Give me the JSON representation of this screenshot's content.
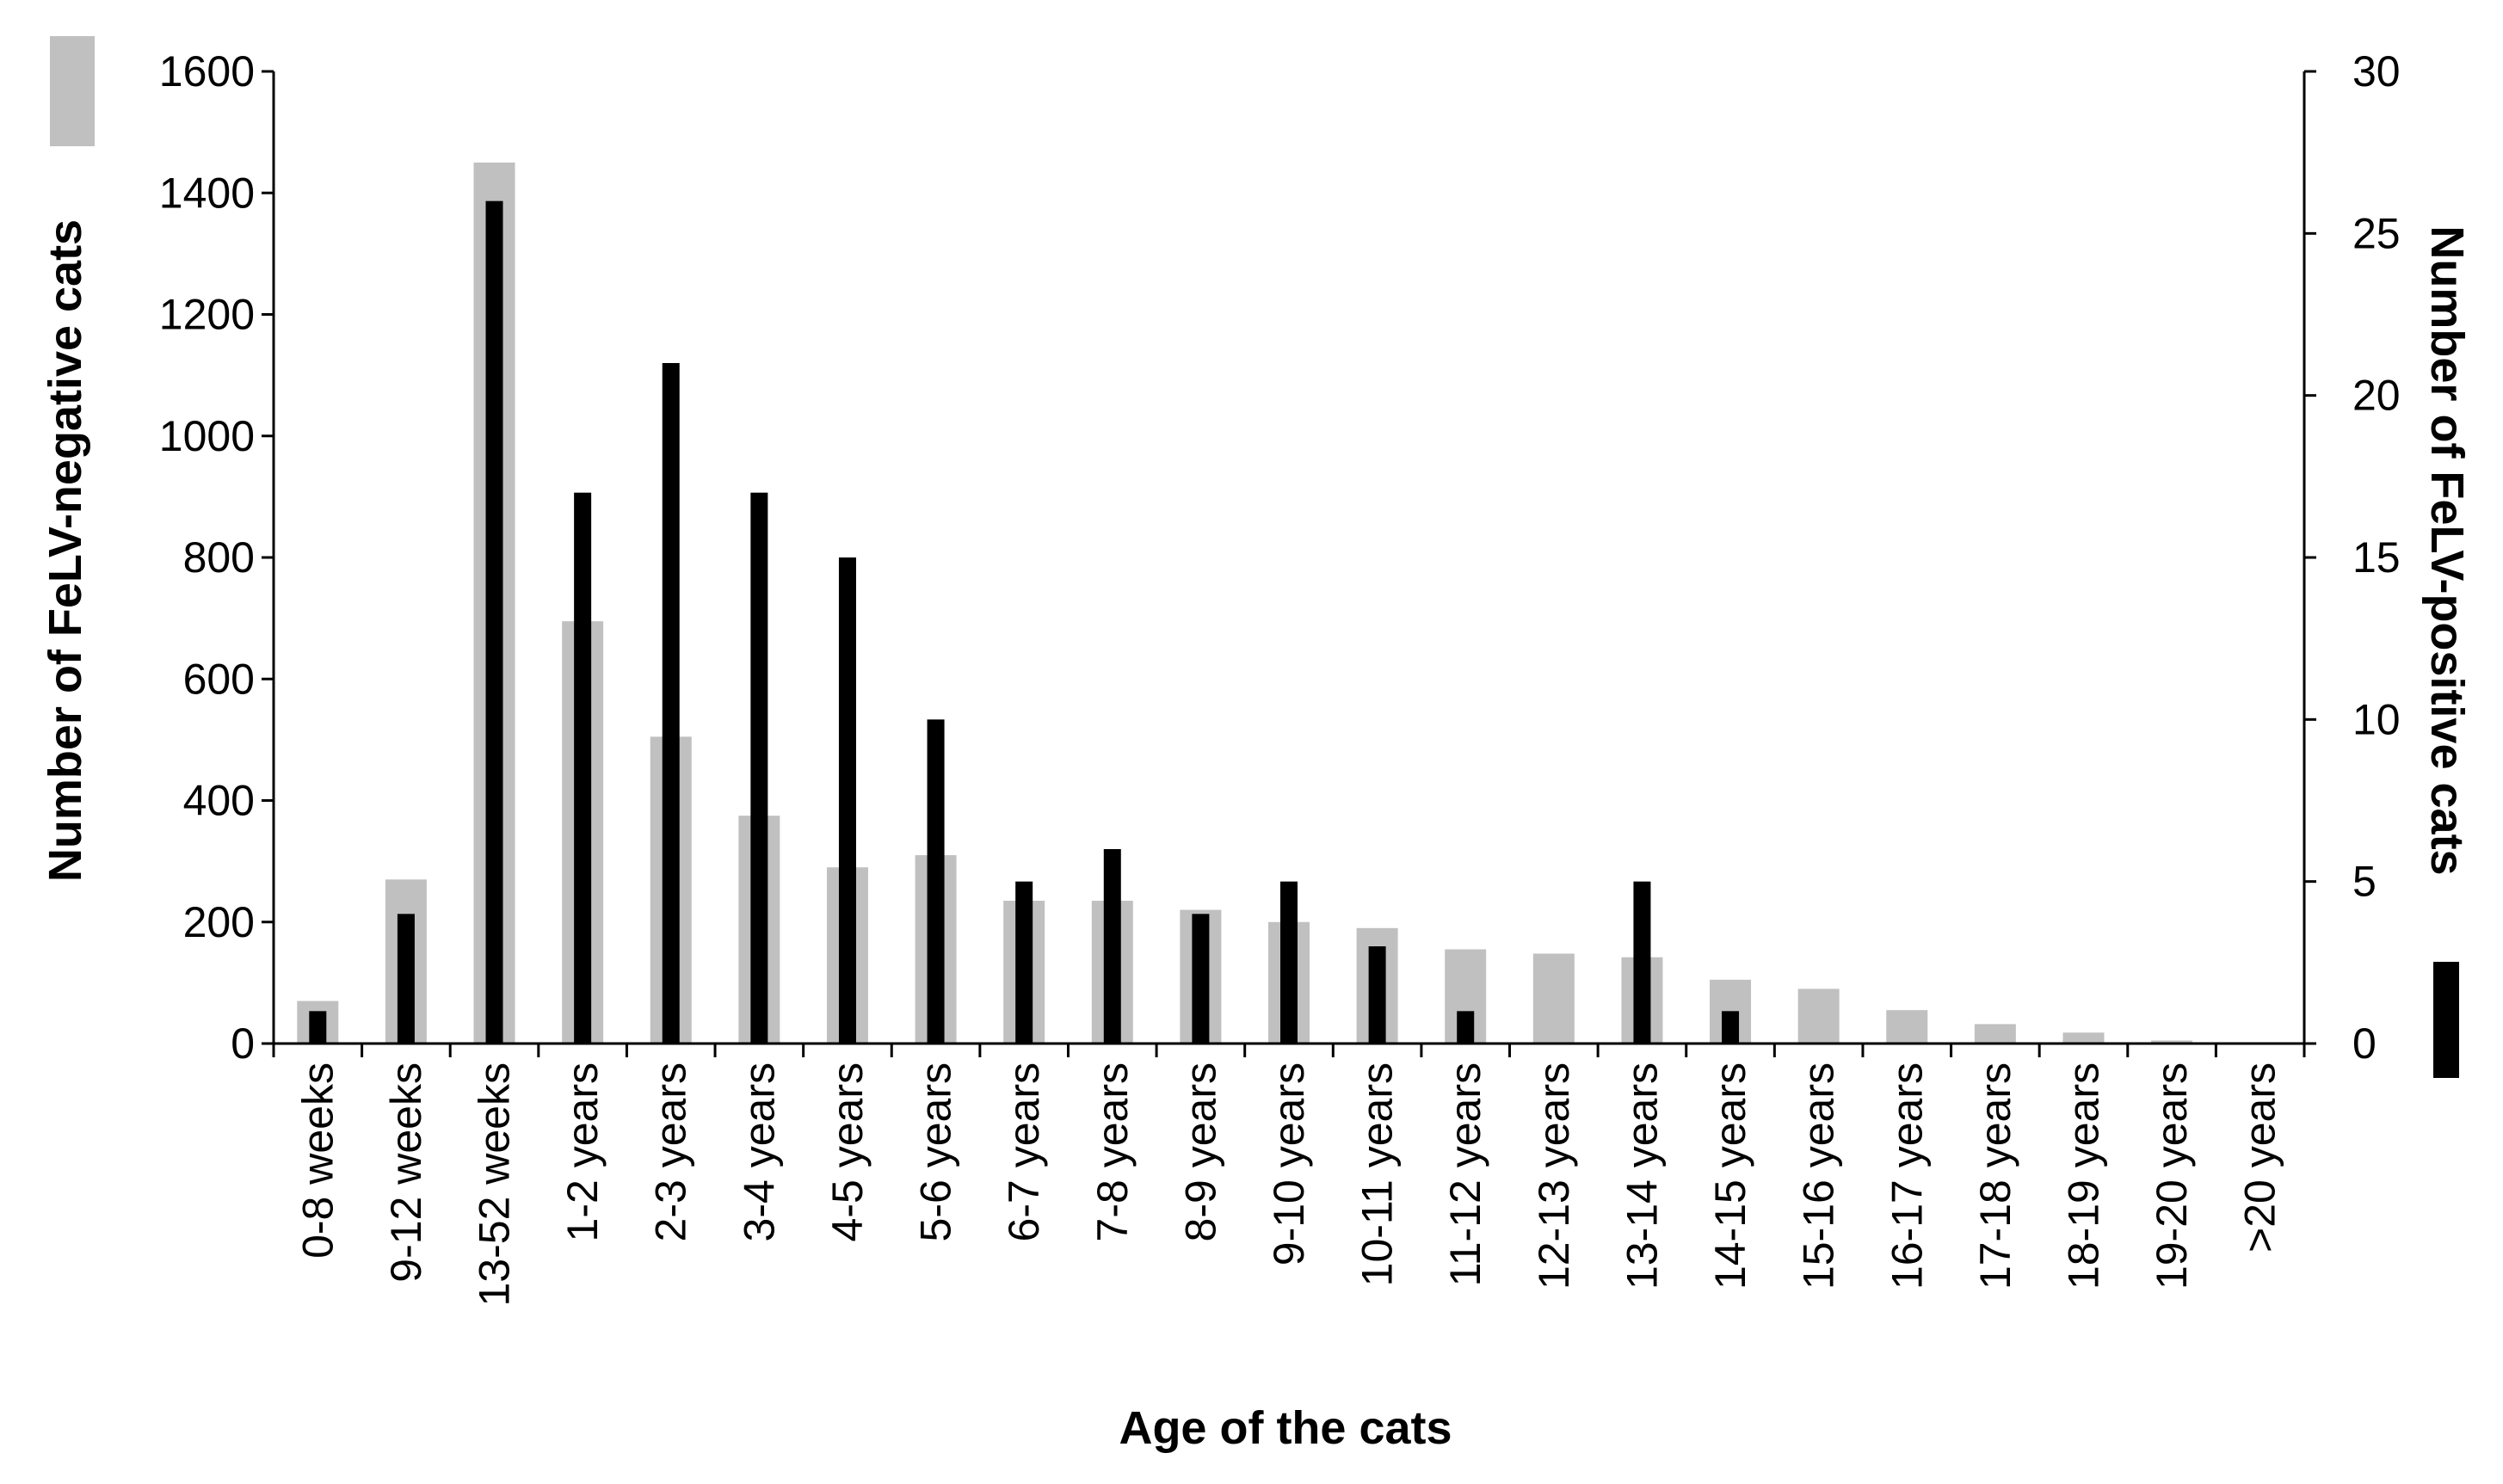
{
  "chart_data": {
    "type": "bar",
    "xlabel": "Age of the cats",
    "categories": [
      "0-8 weeks",
      "9-12 weeks",
      "13-52 weeks",
      "1-2 years",
      "2-3 years",
      "3-4 years",
      "4-5 years",
      "5-6 years",
      "6-7 years",
      "7-8 years",
      "8-9 years",
      "9-10 years",
      "10-11 years",
      "11-12 years",
      "12-13 years",
      "13-14 years",
      "14-15 years",
      "15-16 years",
      "16-17 years",
      "17-18 years",
      "18-19 years",
      "19-20 years",
      ">20 years"
    ],
    "series": [
      {
        "axis": "left",
        "color": "#c0c0c0",
        "values": [
          70,
          270,
          1450,
          695,
          505,
          375,
          290,
          310,
          235,
          235,
          220,
          200,
          190,
          155,
          148,
          142,
          105,
          90,
          55,
          32,
          18,
          5,
          2
        ]
      },
      {
        "axis": "right",
        "color": "#000000",
        "values": [
          1,
          4,
          26,
          17,
          21,
          17,
          15,
          10,
          5,
          6,
          4,
          5,
          3,
          1,
          0,
          5,
          1,
          0,
          0,
          0,
          0,
          0,
          0
        ]
      }
    ],
    "y_left": {
      "label": "Number of FeLV-negative cats",
      "range": [
        0,
        1600
      ],
      "ticks": [
        "0",
        "200",
        "400",
        "600",
        "800",
        "1000",
        "1200",
        "1400",
        "1600"
      ],
      "legend_color": "#c0c0c0"
    },
    "y_right": {
      "label": "Number of FeLV-positive cats",
      "range": [
        0,
        30
      ],
      "ticks": [
        "0",
        "5",
        "10",
        "15",
        "20",
        "25",
        "30"
      ],
      "legend_color": "#000000"
    },
    "grid": false
  }
}
